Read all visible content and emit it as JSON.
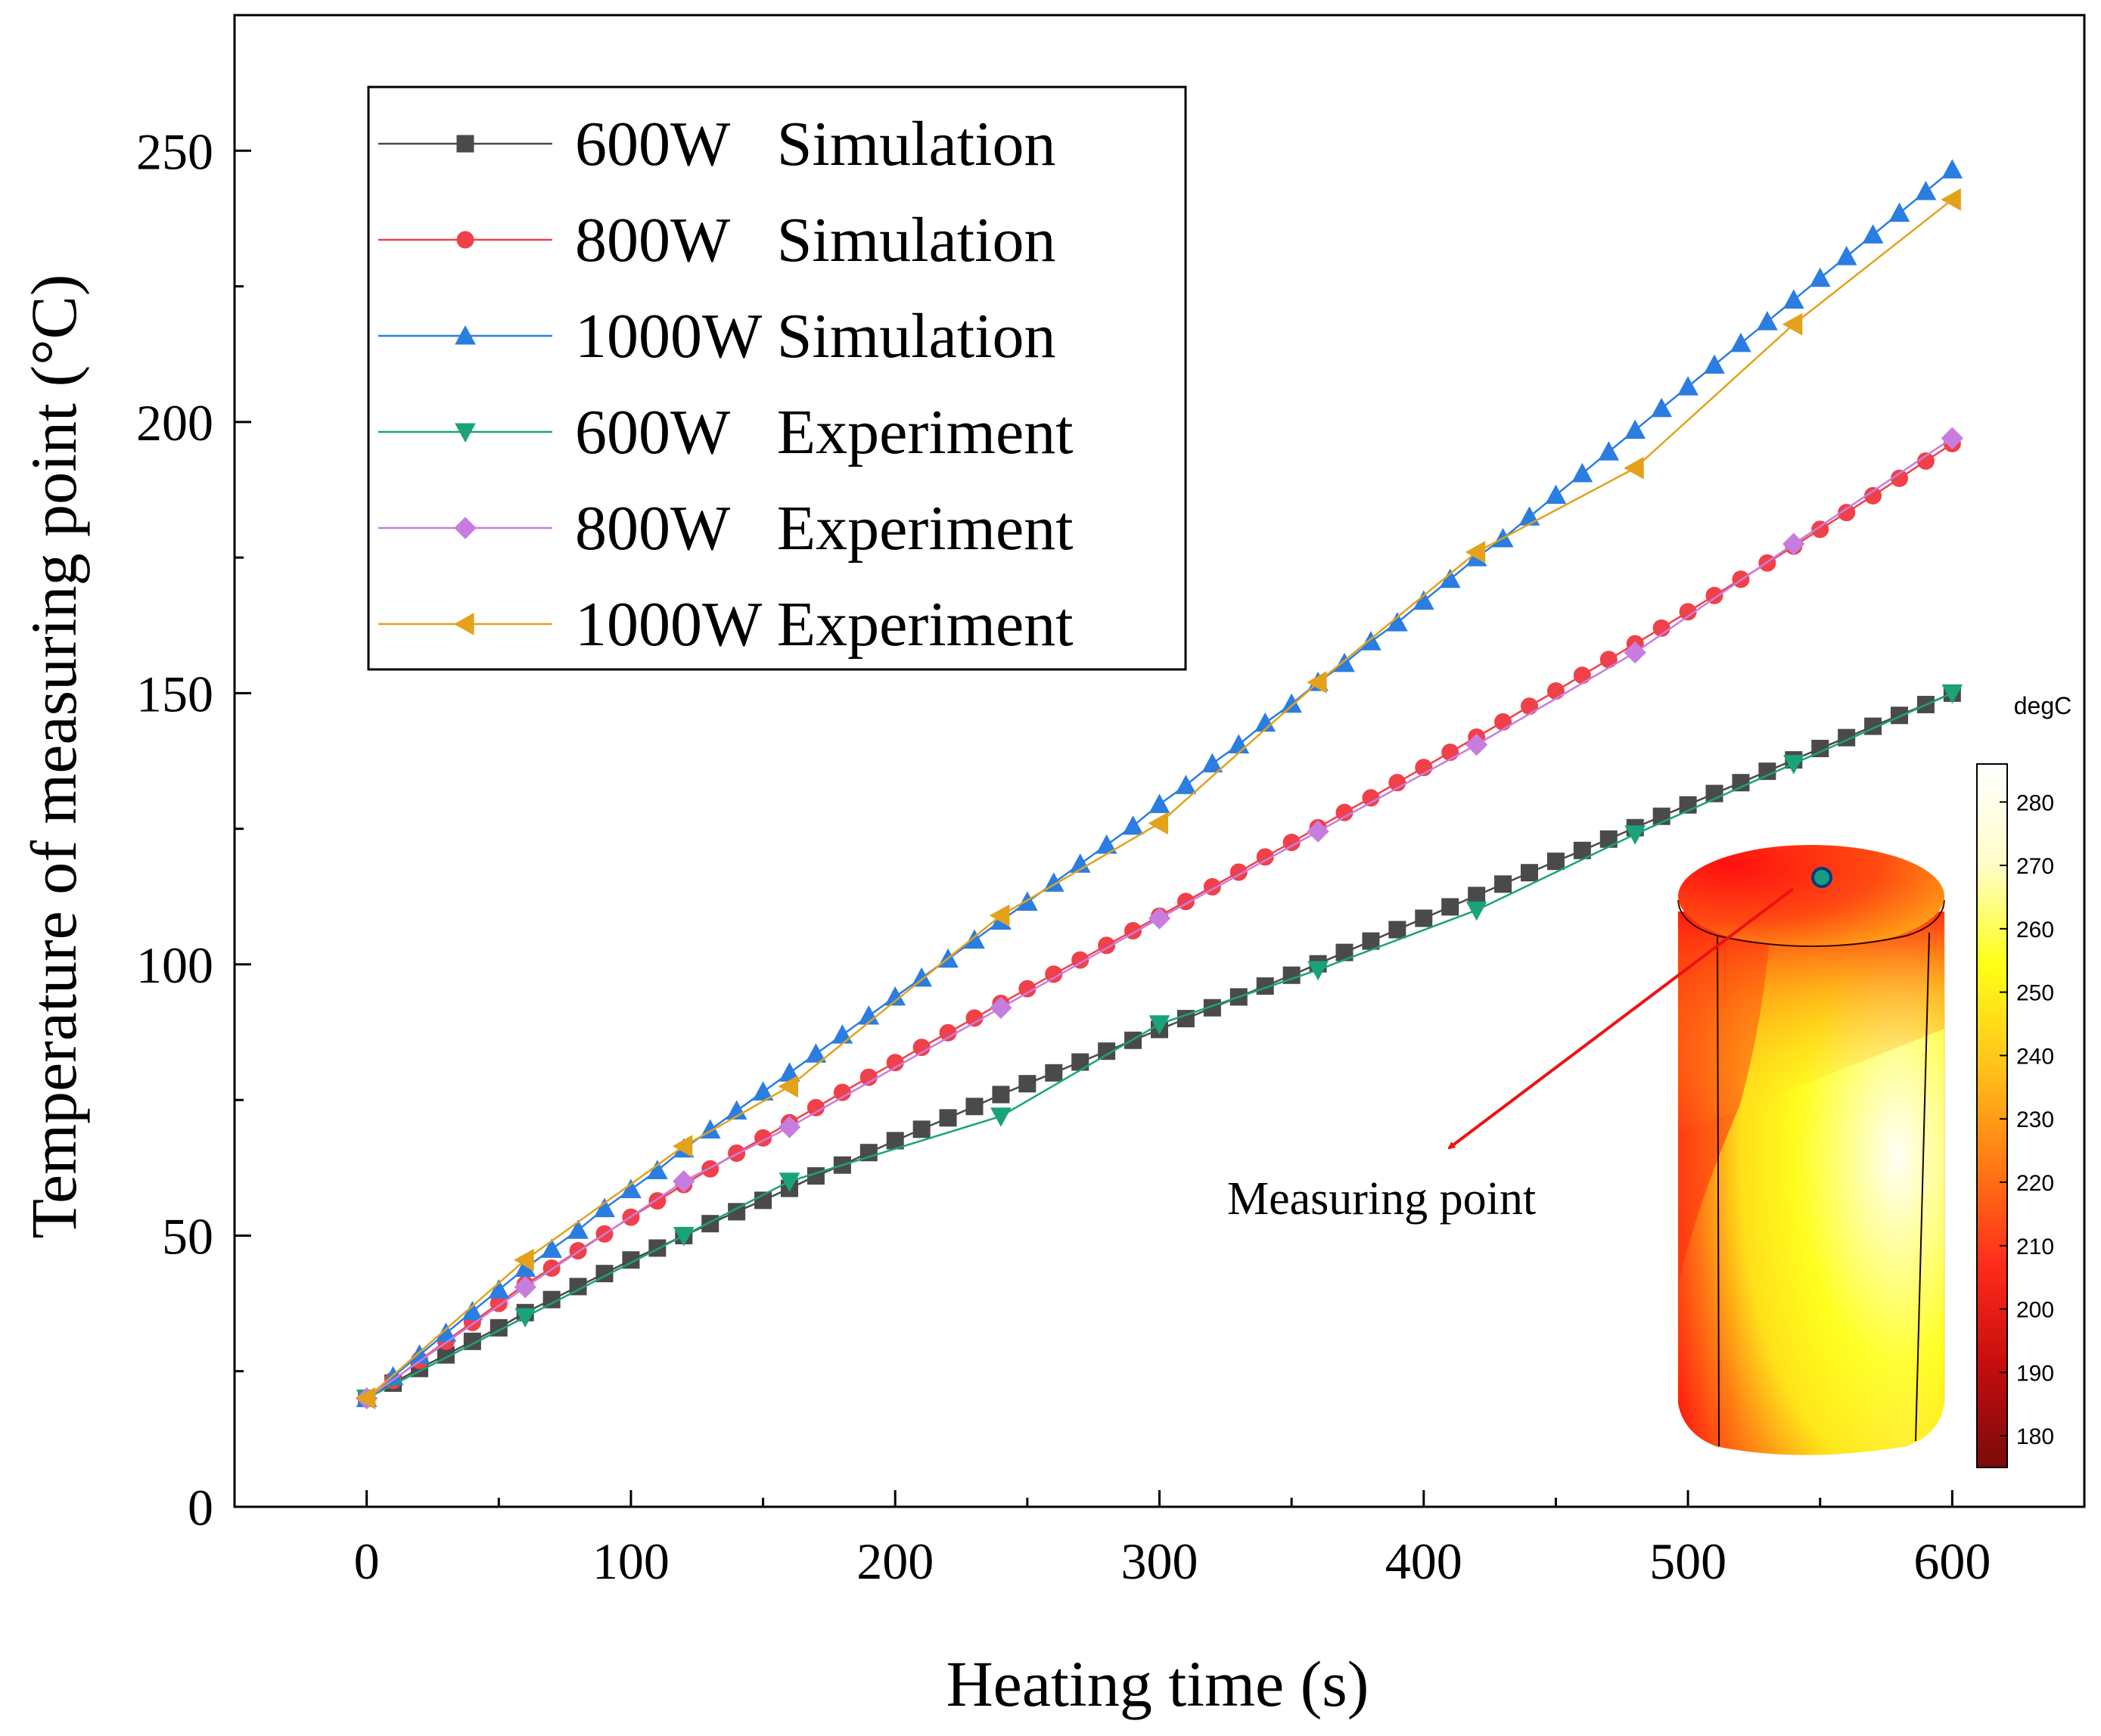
{
  "chart_data": {
    "type": "line",
    "xlabel": "Heating time (s)",
    "ylabel": "Temperature of measuring point (°C)",
    "xlim": [
      -50,
      650
    ],
    "ylim": [
      0,
      275
    ],
    "xticks": [
      0,
      100,
      200,
      300,
      400,
      500,
      600
    ],
    "yticks": [
      0,
      50,
      100,
      150,
      200,
      250
    ],
    "legend_location": "top-left",
    "series": [
      {
        "name": "600W   Simulation",
        "color": "#4a4a4a",
        "marker": "square",
        "x": [
          0,
          10,
          20,
          30,
          40,
          50,
          60,
          70,
          80,
          90,
          100,
          110,
          120,
          130,
          140,
          150,
          160,
          170,
          180,
          190,
          200,
          210,
          220,
          230,
          240,
          250,
          260,
          270,
          280,
          290,
          300,
          310,
          320,
          330,
          340,
          350,
          360,
          370,
          380,
          390,
          400,
          410,
          420,
          430,
          440,
          450,
          460,
          470,
          480,
          490,
          500,
          510,
          520,
          530,
          540,
          550,
          560,
          570,
          580,
          590,
          600
        ],
        "values": [
          20,
          22.8,
          25.5,
          28,
          30.5,
          33,
          35.8,
          38.2,
          40.6,
          43,
          45.5,
          47.7,
          50,
          52.2,
          54.4,
          56.5,
          58.7,
          61,
          63,
          65.3,
          67.5,
          69.6,
          71.7,
          73.8,
          76,
          78,
          80,
          82,
          84,
          86,
          88,
          90,
          92,
          94,
          96,
          98,
          100.1,
          102.2,
          104.3,
          106.4,
          108.5,
          110.6,
          112.7,
          114.8,
          116.9,
          119,
          121,
          123.1,
          125.2,
          127.3,
          129.4,
          131.5,
          133.5,
          135.6,
          137.7,
          139.8,
          141.8,
          143.9,
          145.9,
          147.9,
          150
        ]
      },
      {
        "name": "800W   Simulation",
        "color": "#f0404a",
        "marker": "circle",
        "x": [
          0,
          10,
          20,
          30,
          40,
          50,
          60,
          70,
          80,
          90,
          100,
          110,
          120,
          130,
          140,
          150,
          160,
          170,
          180,
          190,
          200,
          210,
          220,
          230,
          240,
          250,
          260,
          270,
          280,
          290,
          300,
          310,
          320,
          330,
          340,
          350,
          360,
          370,
          380,
          390,
          400,
          410,
          420,
          430,
          440,
          450,
          460,
          470,
          480,
          490,
          500,
          510,
          520,
          530,
          540,
          550,
          560,
          570,
          580,
          590,
          600
        ],
        "values": [
          20,
          23.3,
          27,
          30.5,
          34,
          37.5,
          41,
          44,
          47.2,
          50.3,
          53.4,
          56.4,
          59.4,
          62.3,
          65.2,
          68,
          70.8,
          73.6,
          76.4,
          79.2,
          81.9,
          84.7,
          87.4,
          90.1,
          92.8,
          95.5,
          98.2,
          100.8,
          103.5,
          106.2,
          108.9,
          111.6,
          114.3,
          117,
          119.8,
          122.5,
          125.2,
          128,
          130.7,
          133.5,
          136.3,
          139.1,
          141.9,
          144.7,
          147.6,
          150.4,
          153.3,
          156.2,
          159.1,
          162,
          165,
          168,
          171,
          174,
          177.1,
          180.2,
          183.3,
          186.4,
          189.6,
          192.8,
          196
        ]
      },
      {
        "name": "1000W Simulation",
        "color": "#2a7de1",
        "marker": "triangle-up",
        "x": [
          0,
          10,
          20,
          30,
          40,
          50,
          60,
          70,
          80,
          90,
          100,
          110,
          120,
          130,
          140,
          150,
          160,
          170,
          180,
          190,
          200,
          210,
          220,
          230,
          240,
          250,
          260,
          270,
          280,
          290,
          300,
          310,
          320,
          330,
          340,
          350,
          360,
          370,
          380,
          390,
          400,
          410,
          420,
          430,
          440,
          450,
          460,
          470,
          480,
          490,
          500,
          510,
          520,
          530,
          540,
          550,
          560,
          570,
          580,
          590,
          600
        ],
        "values": [
          20,
          24,
          28,
          32,
          36,
          40,
          44,
          47.5,
          51,
          55,
          58.5,
          62,
          66,
          69.5,
          73,
          76.5,
          80,
          83.5,
          87,
          90.5,
          94,
          97.5,
          101,
          104.5,
          108,
          111.5,
          115,
          118.5,
          122,
          125.5,
          129.5,
          133,
          137,
          140.5,
          144.5,
          148,
          152,
          155.5,
          159.5,
          163,
          167,
          171,
          175,
          178.5,
          182.5,
          186.5,
          190.5,
          194.5,
          198.5,
          202.5,
          206.5,
          210.5,
          214.5,
          218.5,
          222.5,
          226.5,
          230.5,
          234.5,
          238.5,
          242.5,
          246.5
        ]
      },
      {
        "name": "600W   Experiment",
        "color": "#1aa37a",
        "marker": "triangle-down",
        "x": [
          0,
          60,
          120,
          160,
          240,
          300,
          360,
          420,
          480,
          540,
          600
        ],
        "values": [
          20,
          35,
          50,
          60,
          72,
          89,
          99,
          110,
          124,
          137,
          150
        ]
      },
      {
        "name": "800W   Experiment",
        "color": "#c77de0",
        "marker": "diamond",
        "x": [
          0,
          60,
          120,
          160,
          240,
          300,
          360,
          420,
          480,
          540,
          600
        ],
        "values": [
          20,
          40.5,
          60,
          70,
          92,
          108.5,
          124.5,
          140.5,
          157.5,
          177.5,
          197
        ]
      },
      {
        "name": "1000W Experiment",
        "color": "#e3a21a",
        "marker": "triangle-left",
        "x": [
          0,
          60,
          120,
          160,
          240,
          300,
          360,
          420,
          480,
          540,
          600
        ],
        "values": [
          20,
          45.5,
          66.5,
          77.5,
          109,
          126,
          152,
          176,
          191.5,
          218,
          241
        ]
      }
    ],
    "inset": {
      "annotation": "Measuring point",
      "colorbar_unit": "degC",
      "colorbar_ticks": [
        180,
        190,
        200,
        210,
        220,
        230,
        240,
        250,
        260,
        270,
        280
      ],
      "colorbar_range": [
        175,
        286
      ],
      "colorbar_colors": [
        "#7a0c0c",
        "#c40d0d",
        "#ff2a1a",
        "#ff7a14",
        "#ffc31a",
        "#ffff16",
        "#fffdc8",
        "#ffffff"
      ],
      "marker_color": "#1a9a7f"
    }
  }
}
